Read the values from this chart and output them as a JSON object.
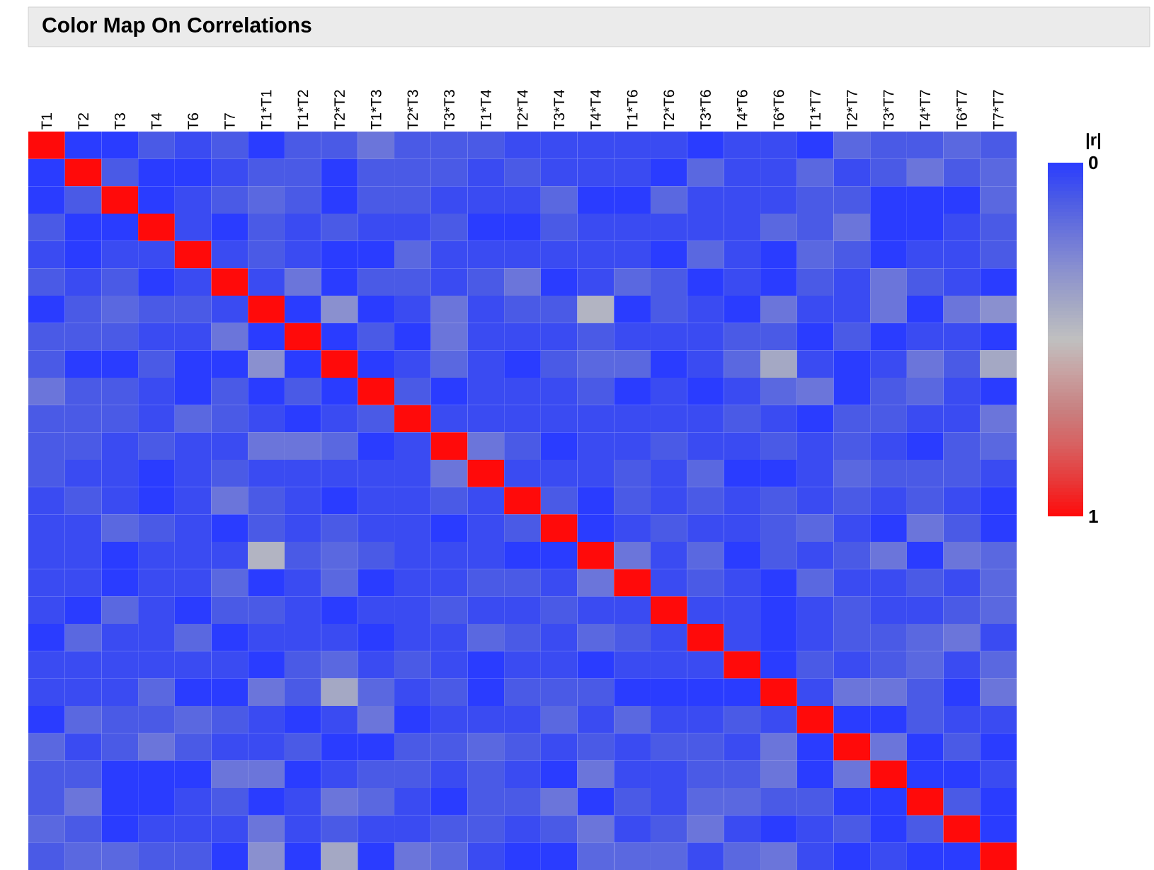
{
  "chart_data": {
    "type": "heatmap",
    "title": "Color Map On Correlations",
    "clabel": "|r|",
    "categories": [
      "T1",
      "T2",
      "T3",
      "T4",
      "T6",
      "T7",
      "T1*T1",
      "T1*T2",
      "T2*T2",
      "T1*T3",
      "T2*T3",
      "T3*T3",
      "T1*T4",
      "T2*T4",
      "T3*T4",
      "T4*T4",
      "T1*T6",
      "T2*T6",
      "T3*T6",
      "T4*T6",
      "T6*T6",
      "T1*T7",
      "T2*T7",
      "T3*T7",
      "T4*T7",
      "T6*T7",
      "T7*T7"
    ],
    "y_categories": [
      null,
      null,
      null,
      null,
      null,
      null,
      null,
      null,
      null,
      null,
      null,
      null,
      null,
      null,
      null,
      null,
      null,
      null,
      null,
      null,
      null,
      null,
      null,
      null,
      null,
      null,
      null
    ],
    "clim": [
      0,
      1
    ],
    "cticks": [
      0,
      1
    ],
    "cells": [
      [
        1,
        0,
        0,
        0.1,
        0.05,
        0.1,
        0,
        0.1,
        0.1,
        0.2,
        0.1,
        0.1,
        0.1,
        0.05,
        0.05,
        0.05,
        0.05,
        0.05,
        0,
        0.05,
        0.05,
        0,
        0.15,
        0.1,
        0.1,
        0.15,
        0.1
      ],
      [
        0,
        1,
        0.1,
        0,
        0,
        0.05,
        0.1,
        0.1,
        0,
        0.1,
        0.1,
        0.1,
        0.05,
        0.1,
        0.05,
        0.05,
        0.05,
        0,
        0.15,
        0.05,
        0.05,
        0.15,
        0.05,
        0.1,
        0.2,
        0.1,
        0.15
      ],
      [
        0,
        0.1,
        1,
        0,
        0.05,
        0.1,
        0.15,
        0.1,
        0,
        0.1,
        0.1,
        0.05,
        0.05,
        0.05,
        0.15,
        0,
        0,
        0.15,
        0.05,
        0.05,
        0.05,
        0.1,
        0.1,
        0,
        0,
        0,
        0.15
      ],
      [
        0.1,
        0,
        0,
        1,
        0.05,
        0,
        0.1,
        0.05,
        0.1,
        0.05,
        0.05,
        0.1,
        0,
        0,
        0.1,
        0.05,
        0.05,
        0.05,
        0.05,
        0.05,
        0.15,
        0.1,
        0.2,
        0,
        0,
        0.05,
        0.1
      ],
      [
        0.05,
        0,
        0.05,
        0.05,
        1,
        0.05,
        0.1,
        0.05,
        0,
        0,
        0.15,
        0.05,
        0.05,
        0.05,
        0.05,
        0.05,
        0.05,
        0,
        0.15,
        0.05,
        0,
        0.15,
        0.1,
        0,
        0.05,
        0.05,
        0.1
      ],
      [
        0.1,
        0.05,
        0.1,
        0,
        0.05,
        1,
        0.05,
        0.2,
        0,
        0.1,
        0.1,
        0.05,
        0.1,
        0.2,
        0,
        0.05,
        0.15,
        0.1,
        0,
        0.05,
        0,
        0.1,
        0.05,
        0.2,
        0.1,
        0.05,
        0
      ],
      [
        0,
        0.1,
        0.15,
        0.1,
        0.1,
        0.05,
        1,
        0,
        0.3,
        0,
        0.05,
        0.2,
        0.05,
        0.1,
        0.1,
        0.45,
        0,
        0.1,
        0.05,
        0,
        0.2,
        0.05,
        0.05,
        0.2,
        0,
        0.2,
        0.3
      ],
      [
        0.1,
        0.1,
        0.1,
        0.05,
        0.05,
        0.2,
        0,
        1,
        0,
        0.1,
        0,
        0.2,
        0.05,
        0.05,
        0.05,
        0.1,
        0.05,
        0.05,
        0.05,
        0.1,
        0.1,
        0,
        0.1,
        0,
        0.05,
        0.05,
        0
      ],
      [
        0.1,
        0,
        0,
        0.1,
        0,
        0,
        0.3,
        0,
        1,
        0,
        0.05,
        0.15,
        0.05,
        0,
        0.1,
        0.15,
        0.15,
        0,
        0.05,
        0.15,
        0.4,
        0.05,
        0,
        0.05,
        0.2,
        0.1,
        0.4
      ],
      [
        0.2,
        0.1,
        0.1,
        0.05,
        0,
        0.1,
        0,
        0.1,
        0,
        1,
        0.1,
        0,
        0.05,
        0.05,
        0.05,
        0.1,
        0,
        0.05,
        0,
        0.05,
        0.15,
        0.2,
        0,
        0.1,
        0.15,
        0.05,
        0
      ],
      [
        0.1,
        0.1,
        0.1,
        0.05,
        0.15,
        0.1,
        0.05,
        0,
        0.05,
        0.1,
        1,
        0.05,
        0.05,
        0.05,
        0.05,
        0.05,
        0.05,
        0.05,
        0.05,
        0.1,
        0.05,
        0,
        0.1,
        0.1,
        0.05,
        0.05,
        0.2
      ],
      [
        0.1,
        0.1,
        0.05,
        0.1,
        0.05,
        0.05,
        0.2,
        0.2,
        0.15,
        0,
        0.05,
        1,
        0.2,
        0.1,
        0,
        0.05,
        0.05,
        0.1,
        0.05,
        0.05,
        0.1,
        0.05,
        0.1,
        0.05,
        0,
        0.1,
        0.15
      ],
      [
        0.1,
        0.05,
        0.05,
        0,
        0.05,
        0.1,
        0.05,
        0.05,
        0.05,
        0.05,
        0.05,
        0.2,
        1,
        0.05,
        0.05,
        0.05,
        0.1,
        0.05,
        0.15,
        0,
        0,
        0.05,
        0.15,
        0.1,
        0.1,
        0.1,
        0.05
      ],
      [
        0.05,
        0.1,
        0.05,
        0,
        0.05,
        0.2,
        0.1,
        0.05,
        0,
        0.05,
        0.05,
        0.1,
        0.05,
        1,
        0.1,
        0,
        0.1,
        0.05,
        0.1,
        0.05,
        0.1,
        0.05,
        0.1,
        0.05,
        0.1,
        0.05,
        0
      ],
      [
        0.05,
        0.05,
        0.15,
        0.1,
        0.05,
        0,
        0.1,
        0.05,
        0.1,
        0.05,
        0.05,
        0,
        0.05,
        0.1,
        1,
        0,
        0.05,
        0.1,
        0.05,
        0.05,
        0.1,
        0.15,
        0.05,
        0,
        0.2,
        0.1,
        0
      ],
      [
        0.05,
        0.05,
        0,
        0.05,
        0.05,
        0.05,
        0.45,
        0.1,
        0.15,
        0.1,
        0.05,
        0.05,
        0.05,
        0,
        0,
        1,
        0.2,
        0.05,
        0.15,
        0,
        0.1,
        0.05,
        0.1,
        0.2,
        0,
        0.2,
        0.15
      ],
      [
        0.05,
        0.05,
        0,
        0.05,
        0.05,
        0.15,
        0,
        0.05,
        0.15,
        0,
        0.05,
        0.05,
        0.1,
        0.1,
        0.05,
        0.2,
        1,
        0.05,
        0.1,
        0.05,
        0,
        0.15,
        0.05,
        0.05,
        0.1,
        0.05,
        0.15
      ],
      [
        0.05,
        0,
        0.15,
        0.05,
        0,
        0.1,
        0.1,
        0.05,
        0,
        0.05,
        0.05,
        0.1,
        0.05,
        0.05,
        0.1,
        0.05,
        0.05,
        1,
        0.05,
        0.05,
        0,
        0.05,
        0.1,
        0.05,
        0.05,
        0.1,
        0.15
      ],
      [
        0,
        0.15,
        0.05,
        0.05,
        0.15,
        0,
        0.05,
        0.05,
        0.05,
        0,
        0.05,
        0.05,
        0.15,
        0.1,
        0.05,
        0.15,
        0.1,
        0.05,
        1,
        0.05,
        0,
        0.05,
        0.1,
        0.1,
        0.15,
        0.2,
        0.05
      ],
      [
        0.05,
        0.05,
        0.05,
        0.05,
        0.05,
        0.05,
        0,
        0.1,
        0.15,
        0.05,
        0.1,
        0.05,
        0,
        0.05,
        0.05,
        0,
        0.05,
        0.05,
        0.05,
        1,
        0,
        0.1,
        0.05,
        0.1,
        0.15,
        0.05,
        0.15
      ],
      [
        0.05,
        0.05,
        0.05,
        0.15,
        0,
        0,
        0.2,
        0.1,
        0.4,
        0.15,
        0.05,
        0.1,
        0,
        0.1,
        0.1,
        0.1,
        0,
        0,
        0,
        0,
        1,
        0.05,
        0.2,
        0.2,
        0.1,
        0,
        0.2
      ],
      [
        0,
        0.15,
        0.1,
        0.1,
        0.15,
        0.1,
        0.05,
        0,
        0.05,
        0.2,
        0,
        0.05,
        0.05,
        0.05,
        0.15,
        0.05,
        0.15,
        0.05,
        0.05,
        0.1,
        0.05,
        1,
        0,
        0,
        0.1,
        0.05,
        0.05
      ],
      [
        0.15,
        0.05,
        0.1,
        0.2,
        0.1,
        0.05,
        0.05,
        0.1,
        0,
        0,
        0.1,
        0.1,
        0.15,
        0.1,
        0.05,
        0.1,
        0.05,
        0.1,
        0.1,
        0.05,
        0.2,
        0,
        1,
        0.2,
        0,
        0.1,
        0
      ],
      [
        0.1,
        0.1,
        0,
        0,
        0,
        0.2,
        0.2,
        0,
        0.05,
        0.1,
        0.1,
        0.05,
        0.1,
        0.05,
        0,
        0.2,
        0.05,
        0.05,
        0.1,
        0.1,
        0.2,
        0,
        0.2,
        1,
        0,
        0,
        0.05
      ],
      [
        0.1,
        0.2,
        0,
        0,
        0.05,
        0.1,
        0,
        0.05,
        0.2,
        0.15,
        0.05,
        0,
        0.1,
        0.1,
        0.2,
        0,
        0.1,
        0.05,
        0.15,
        0.15,
        0.1,
        0.1,
        0,
        0,
        1,
        0.1,
        0
      ],
      [
        0.15,
        0.1,
        0,
        0.05,
        0.05,
        0.05,
        0.2,
        0.05,
        0.1,
        0.05,
        0.05,
        0.1,
        0.1,
        0.05,
        0.1,
        0.2,
        0.05,
        0.1,
        0.2,
        0.05,
        0,
        0.05,
        0.1,
        0,
        0.1,
        1,
        0
      ],
      [
        0.1,
        0.15,
        0.15,
        0.1,
        0.1,
        0,
        0.3,
        0,
        0.4,
        0,
        0.2,
        0.15,
        0.05,
        0,
        0,
        0.15,
        0.15,
        0.15,
        0.05,
        0.15,
        0.2,
        0.05,
        0,
        0.05,
        0,
        0,
        1
      ]
    ]
  }
}
